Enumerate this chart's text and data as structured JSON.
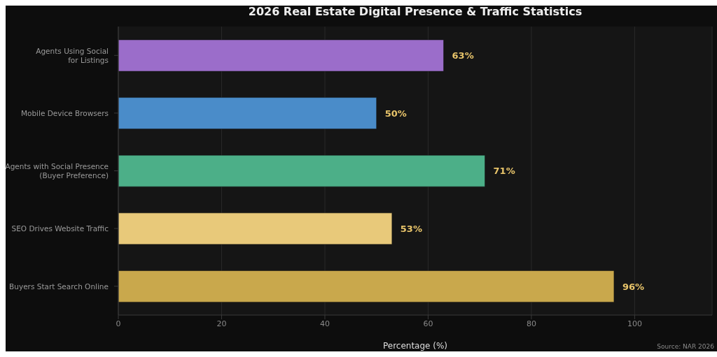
{
  "chart_data": {
    "type": "bar",
    "orientation": "horizontal",
    "title": "2026 Real Estate Digital Presence & Traffic Statistics",
    "xlabel": "Percentage (%)",
    "categories": [
      "Agents Using Social\nfor Listings",
      "Mobile Device Browsers",
      "Agents with Social Presence\n(Buyer Preference)",
      "SEO Drives Website Traffic",
      "Buyers Start Search Online"
    ],
    "values": [
      63,
      50,
      71,
      53,
      96
    ],
    "colors": [
      "#9b6dca",
      "#4a8cc9",
      "#4caf88",
      "#e8c97a",
      "#c9a84c"
    ],
    "value_labels": [
      "63%",
      "50%",
      "71%",
      "53%",
      "96%"
    ],
    "xlim": [
      0,
      115
    ],
    "xticks": [
      0,
      20,
      40,
      60,
      80,
      100
    ],
    "grid": "x",
    "legend": false,
    "annotations": [
      "Source: NAR 2026"
    ]
  }
}
